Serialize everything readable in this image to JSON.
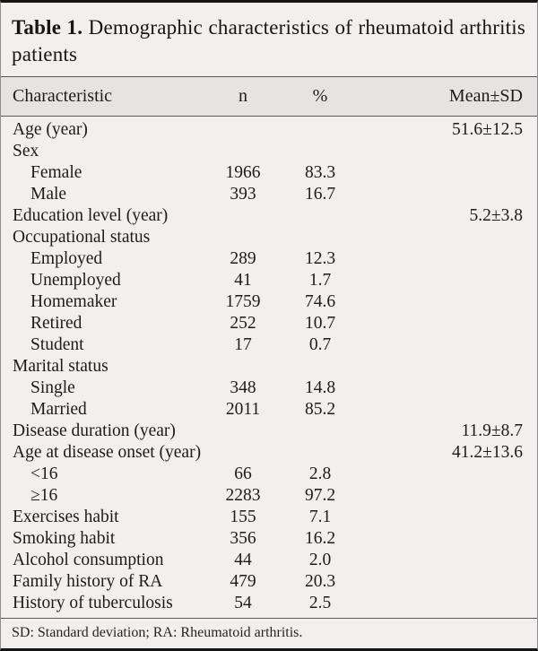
{
  "title": {
    "label": "Table 1.",
    "text": "Demographic characteristics of rheumatoid arthritis patients"
  },
  "columns": {
    "characteristic": "Characteristic",
    "n": "n",
    "percent": "%",
    "mean_sd": "Mean±SD"
  },
  "rows": [
    {
      "label": "Age (year)",
      "n": "",
      "percent": "",
      "mean_sd": "51.6±12.5",
      "indent": false
    },
    {
      "label": "Sex",
      "n": "",
      "percent": "",
      "mean_sd": "",
      "indent": false
    },
    {
      "label": "Female",
      "n": "1966",
      "percent": "83.3",
      "mean_sd": "",
      "indent": true
    },
    {
      "label": "Male",
      "n": "393",
      "percent": "16.7",
      "mean_sd": "",
      "indent": true
    },
    {
      "label": "Education level (year)",
      "n": "",
      "percent": "",
      "mean_sd": "5.2±3.8",
      "indent": false
    },
    {
      "label": "Occupational status",
      "n": "",
      "percent": "",
      "mean_sd": "",
      "indent": false
    },
    {
      "label": "Employed",
      "n": "289",
      "percent": "12.3",
      "mean_sd": "",
      "indent": true
    },
    {
      "label": "Unemployed",
      "n": "41",
      "percent": "1.7",
      "mean_sd": "",
      "indent": true
    },
    {
      "label": "Homemaker",
      "n": "1759",
      "percent": "74.6",
      "mean_sd": "",
      "indent": true
    },
    {
      "label": "Retired",
      "n": "252",
      "percent": "10.7",
      "mean_sd": "",
      "indent": true
    },
    {
      "label": "Student",
      "n": "17",
      "percent": "0.7",
      "mean_sd": "",
      "indent": true
    },
    {
      "label": "Marital status",
      "n": "",
      "percent": "",
      "mean_sd": "",
      "indent": false
    },
    {
      "label": "Single",
      "n": "348",
      "percent": "14.8",
      "mean_sd": "",
      "indent": true
    },
    {
      "label": "Married",
      "n": "2011",
      "percent": "85.2",
      "mean_sd": "",
      "indent": true
    },
    {
      "label": "Disease duration (year)",
      "n": "",
      "percent": "",
      "mean_sd": "11.9±8.7",
      "indent": false
    },
    {
      "label": "Age at disease onset (year)",
      "n": "",
      "percent": "",
      "mean_sd": "41.2±13.6",
      "indent": false
    },
    {
      "label": "<16",
      "n": "66",
      "percent": "2.8",
      "mean_sd": "",
      "indent": true
    },
    {
      "label": "≥16",
      "n": "2283",
      "percent": "97.2",
      "mean_sd": "",
      "indent": true
    },
    {
      "label": "Exercises habit",
      "n": "155",
      "percent": "7.1",
      "mean_sd": "",
      "indent": false
    },
    {
      "label": "Smoking habit",
      "n": "356",
      "percent": "16.2",
      "mean_sd": "",
      "indent": false
    },
    {
      "label": "Alcohol consumption",
      "n": "44",
      "percent": "2.0",
      "mean_sd": "",
      "indent": false
    },
    {
      "label": "Family history of RA",
      "n": "479",
      "percent": "20.3",
      "mean_sd": "",
      "indent": false
    },
    {
      "label": "History of tuberculosis",
      "n": "54",
      "percent": "2.5",
      "mean_sd": "",
      "indent": false
    }
  ],
  "footnote": "SD: Standard deviation; RA: Rheumatoid arthritis.",
  "colors": {
    "table_background": "#f1f0ee",
    "header_band_background": "#e5e4e2",
    "frame_border": "#141414",
    "rule_line": "#5a5a5a",
    "text": "#1c1c1c"
  }
}
